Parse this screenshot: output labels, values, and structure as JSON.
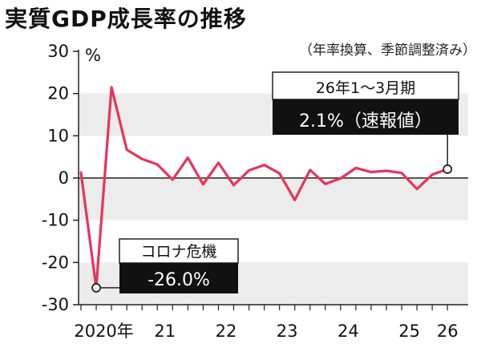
{
  "title": "実質GDP成長率の推移",
  "subtitle": "（年率換算、季節調整済み）",
  "chart_data": {
    "type": "line",
    "ylabel": "%",
    "xlabel": "",
    "ylim": [
      -30,
      30
    ],
    "yticks": [
      30,
      20,
      10,
      0,
      -10,
      -20,
      -30
    ],
    "grid": "alternating horizontal bands",
    "x_labels": [
      {
        "label": "2020年",
        "index": 1.5
      },
      {
        "label": "21",
        "index": 5.5
      },
      {
        "label": "22",
        "index": 9.5
      },
      {
        "label": "23",
        "index": 13.5
      },
      {
        "label": "24",
        "index": 17.5
      },
      {
        "label": "25",
        "index": 21.5
      },
      {
        "label": "26",
        "index": 24
      }
    ],
    "series": [
      {
        "values": [
          1.3,
          -26.0,
          21.5,
          6.7,
          4.5,
          3.2,
          -0.4,
          4.8,
          -1.5,
          3.6,
          -1.7,
          1.8,
          3.1,
          1.1,
          -5.2,
          1.9,
          -1.4,
          -0.1,
          2.4,
          1.4,
          1.7,
          1.2,
          -2.6,
          0.8,
          2.1
        ],
        "color": "#e8335a"
      }
    ],
    "annotations": [
      {
        "index": 1,
        "label": "コロナ危機",
        "value_text": "-26.0%",
        "placement": "right-of-point"
      },
      {
        "index": 24,
        "label": "26年1～3月期",
        "value_text": "2.1%（速報値）",
        "placement": "above-left-of-point"
      }
    ]
  }
}
